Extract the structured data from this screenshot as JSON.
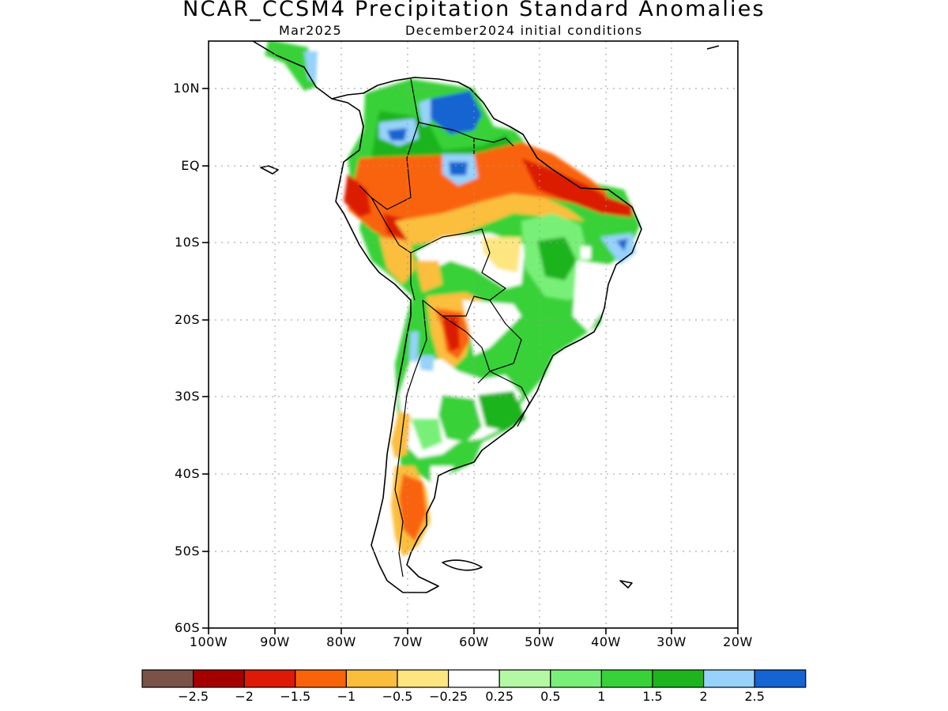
{
  "title": "NCAR_CCSM4 Precipitation Standard Anomalies",
  "subtitle_left": "Mar2025",
  "subtitle_right": "December2024 initial conditions",
  "axes": {
    "lat_labels": [
      "10N",
      "EQ",
      "10S",
      "20S",
      "30S",
      "40S",
      "50S",
      "60S"
    ],
    "lat_values": [
      10,
      0,
      -10,
      -20,
      -30,
      -40,
      -50,
      -60
    ],
    "lon_labels": [
      "100W",
      "90W",
      "80W",
      "70W",
      "60W",
      "50W",
      "40W",
      "30W",
      "20W"
    ],
    "lon_values": [
      -100,
      -90,
      -80,
      -70,
      -60,
      -50,
      -40,
      -30,
      -20
    ],
    "lat_range": [
      -60,
      16
    ],
    "lon_range": [
      -100,
      -20
    ],
    "grid": "dotted"
  },
  "colorbar": {
    "colors": [
      "#7a5248",
      "#a50000",
      "#dc1a06",
      "#fa6408",
      "#fbbe3c",
      "#fde680",
      "#ffffff",
      "#b4f8a4",
      "#78f078",
      "#37d237",
      "#1eb41e",
      "#96d2fa",
      "#1464d2"
    ],
    "labels": [
      "−2.5",
      "−2",
      "−1.5",
      "−1",
      "−0.5",
      "−0.25",
      "0.25",
      "0.5",
      "1",
      "1.5",
      "2",
      "2.5"
    ]
  }
}
